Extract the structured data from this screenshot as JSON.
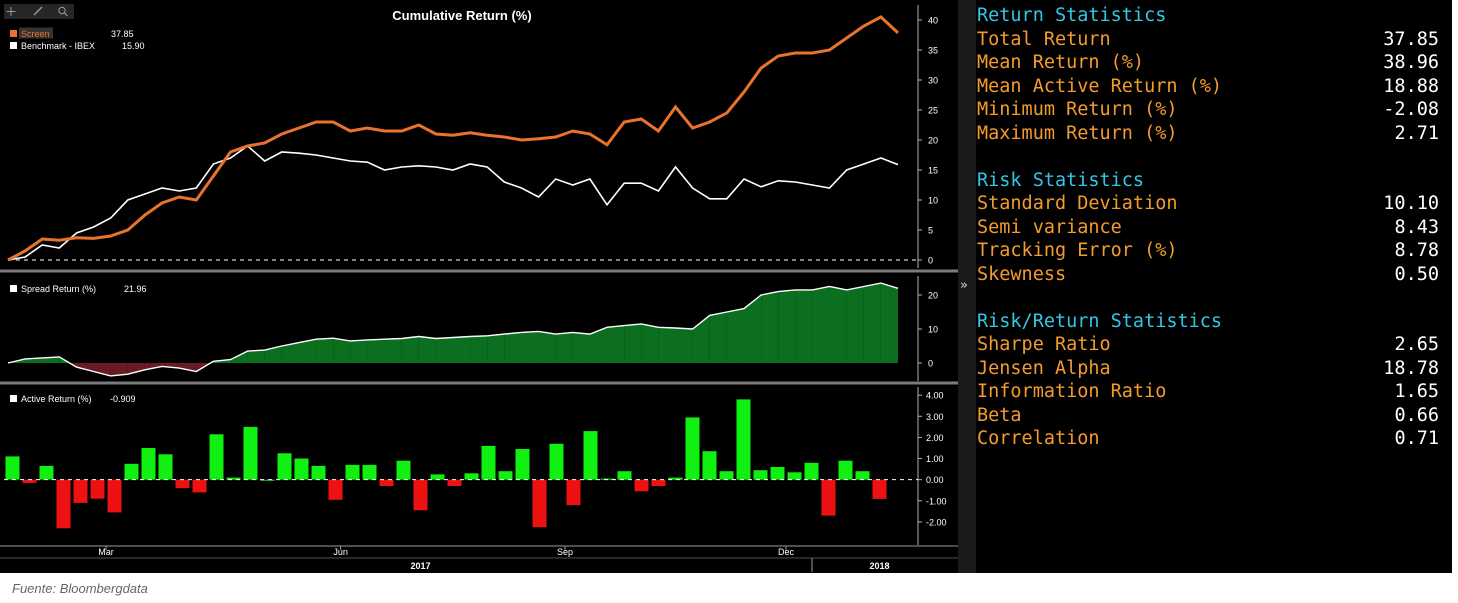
{
  "chart_data": [
    {
      "type": "line",
      "title": "Cumulative Return (%)",
      "yticks": [
        0,
        5,
        10,
        15,
        20,
        25,
        30,
        35,
        40
      ],
      "ylim": [
        -1,
        42
      ],
      "grid": false,
      "legend_position": "top-left",
      "baseline": 0,
      "series": [
        {
          "name": "Screen",
          "legend_value": "37.85",
          "color": "#e8732b",
          "values": [
            0,
            1.5,
            3.5,
            3.3,
            3.7,
            3.6,
            4,
            5,
            7.5,
            9.5,
            10.5,
            10,
            14,
            18,
            19,
            19.5,
            21,
            22,
            23,
            23,
            21.5,
            22,
            21.5,
            21.5,
            22.5,
            21,
            20.8,
            21.2,
            20.8,
            20.5,
            20,
            20.2,
            20.5,
            21.5,
            21,
            19.2,
            23,
            23.5,
            21.5,
            25.5,
            22,
            23,
            24.5,
            28,
            32,
            34,
            34.5,
            34.5,
            35,
            37,
            39,
            40.5,
            37.85
          ]
        },
        {
          "name": "Benchmark - IBEX",
          "legend_value": "15.90",
          "color": "#ffffff",
          "values": [
            0,
            0.5,
            2.5,
            2,
            4.5,
            5.5,
            7,
            10,
            11,
            12,
            11.5,
            12,
            16,
            17,
            19,
            16.5,
            18,
            17.8,
            17.5,
            17,
            16.5,
            16.3,
            15,
            15.5,
            15.7,
            15.5,
            15,
            16,
            15.5,
            13,
            12,
            10.5,
            13.5,
            12.5,
            13.5,
            9.2,
            12.8,
            12.8,
            11.5,
            15.5,
            12,
            10.2,
            10.2,
            13.5,
            12.2,
            13.2,
            13,
            12.5,
            12,
            15,
            16,
            17,
            15.9
          ]
        }
      ]
    },
    {
      "type": "area",
      "yticks": [
        0,
        10,
        20
      ],
      "ylim": [
        -5,
        25
      ],
      "legend_position": "top-left",
      "series": [
        {
          "name": "Spread Return (%)",
          "legend_value": "21.96",
          "positive_color": "#0b6f1f",
          "negative_color": "#6a1a22",
          "values": [
            0,
            1.2,
            1.5,
            1.8,
            -1.2,
            -2.5,
            -3.8,
            -3.3,
            -2,
            -1,
            -1.5,
            -2.5,
            0.5,
            1,
            3.5,
            3.8,
            5,
            6,
            7,
            7.3,
            6.5,
            6.8,
            7,
            7.2,
            7.8,
            7.2,
            7.5,
            7.8,
            8,
            8.5,
            9,
            9.3,
            8.5,
            9,
            8.5,
            10.5,
            11,
            11.5,
            10.5,
            10.3,
            10,
            14,
            15,
            16,
            20,
            21,
            21.5,
            21.5,
            22.5,
            21.5,
            22.5,
            23.5,
            21.96
          ]
        }
      ]
    },
    {
      "type": "bar",
      "yticks": [
        "4.00",
        "3.00",
        "2.00",
        "1.00",
        "0.00",
        "-1.00",
        "-2.00"
      ],
      "ylim": [
        -2.95,
        4.15
      ],
      "legend_position": "top-left",
      "baseline": 0,
      "x_labels": [
        {
          "label": "Mar",
          "index": 5.5
        },
        {
          "label": "Jun",
          "index": 19.3
        },
        {
          "label": "Sep",
          "index": 32.5
        },
        {
          "label": "Dec",
          "index": 45.5
        }
      ],
      "year_labels": [
        {
          "label": "2017",
          "index": 24
        },
        {
          "label": "2018",
          "index": 51
        }
      ],
      "series": [
        {
          "name": "Active Return (%)",
          "legend_value": "-0.909",
          "positive_color": "#11f111",
          "negative_color": "#ee1111",
          "values": [
            1.1,
            -0.15,
            0.65,
            -2.3,
            -1.1,
            -0.9,
            -1.55,
            0.75,
            1.5,
            1.2,
            -0.4,
            -0.6,
            2.15,
            0.1,
            2.5,
            0,
            1.25,
            1,
            0.65,
            -0.95,
            0.7,
            0.7,
            -0.3,
            0.9,
            -1.45,
            0.25,
            -0.3,
            0.3,
            1.6,
            0.4,
            1.45,
            -2.25,
            1.7,
            -1.2,
            2.3,
            0.05,
            0.4,
            -0.55,
            -0.3,
            0.1,
            2.95,
            1.35,
            0.4,
            3.8,
            0.45,
            0.6,
            0.35,
            0.8,
            -1.7,
            0.9,
            0.4,
            -0.909
          ]
        }
      ]
    }
  ],
  "toolbar": {
    "icons": [
      "crosshair-icon",
      "pencil-icon",
      "zoom-icon"
    ]
  },
  "splitter": {
    "arrow": "»"
  },
  "stats": {
    "return_title": "Return Statistics",
    "return_rows": [
      {
        "label": "Total Return",
        "value": "37.85"
      },
      {
        "label": "Mean Return (%)",
        "value": "38.96"
      },
      {
        "label": "Mean Active Return (%)",
        "value": "18.88"
      },
      {
        "label": "Minimum Return (%)",
        "value": "-2.08"
      },
      {
        "label": "Maximum Return (%)",
        "value": "2.71"
      }
    ],
    "risk_title": "Risk Statistics",
    "risk_rows": [
      {
        "label": "Standard Deviation",
        "value": "10.10"
      },
      {
        "label": "Semi variance",
        "value": "8.43"
      },
      {
        "label": "Tracking Error (%)",
        "value": "8.78"
      },
      {
        "label": "Skewness",
        "value": "0.50"
      }
    ],
    "rr_title": "Risk/Return Statistics",
    "rr_rows": [
      {
        "label": "Sharpe Ratio",
        "value": "2.65"
      },
      {
        "label": "Jensen Alpha",
        "value": "18.78"
      },
      {
        "label": "Information Ratio",
        "value": "1.65"
      },
      {
        "label": "Beta",
        "value": "0.66"
      },
      {
        "label": "Correlation",
        "value": "0.71"
      }
    ]
  },
  "colors": {
    "background": "#000000",
    "axis": "#b0b0b0",
    "separator": "#7a7a7a",
    "stat_title": "#33c7e6",
    "stat_label": "#f49b2d",
    "stat_value": "#ffffff"
  },
  "source": "Fuente: Bloombergdata"
}
